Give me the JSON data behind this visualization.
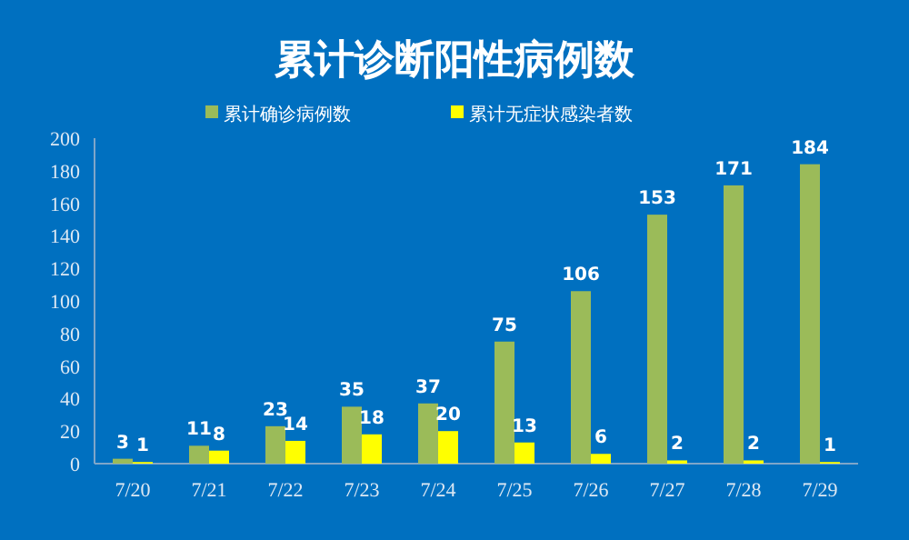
{
  "chart_data": {
    "type": "bar",
    "title": "累计诊断阳性病例数",
    "categories": [
      "7/20",
      "7/21",
      "7/22",
      "7/23",
      "7/24",
      "7/25",
      "7/26",
      "7/27",
      "7/28",
      "7/29"
    ],
    "series": [
      {
        "name": "累计确诊病例数",
        "color": "#9bbb59",
        "values": [
          3,
          11,
          23,
          35,
          37,
          75,
          106,
          153,
          171,
          184
        ]
      },
      {
        "name": "累计无症状感染者数",
        "color": "#ffff00",
        "values": [
          1,
          8,
          14,
          18,
          20,
          13,
          6,
          2,
          2,
          1
        ]
      }
    ],
    "ylim": [
      0,
      200
    ],
    "yticks": [
      0,
      20,
      40,
      60,
      80,
      100,
      120,
      140,
      160,
      180,
      200
    ],
    "data_labels": true,
    "legend": "top",
    "grid": false
  }
}
